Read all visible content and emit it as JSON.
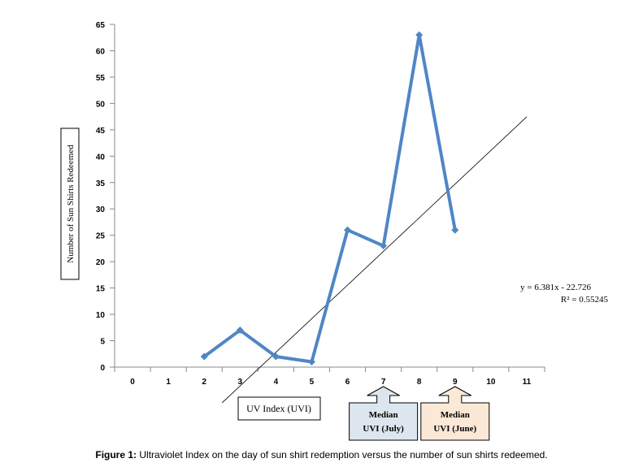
{
  "chart_data": {
    "type": "line",
    "xlabel": "UV Index (UVI)",
    "ylabel": "Number of Sun Shirts Redeemed",
    "x_ticks": [
      0,
      1,
      2,
      3,
      4,
      5,
      6,
      7,
      8,
      9,
      10,
      11
    ],
    "y_ticks": [
      0,
      5,
      10,
      15,
      20,
      25,
      30,
      35,
      40,
      45,
      50,
      55,
      60,
      65
    ],
    "xlim": [
      -0.5,
      11.5
    ],
    "ylim": [
      0,
      65
    ],
    "grid": false,
    "series": [
      {
        "x": [
          2,
          3,
          4,
          5,
          6,
          7,
          8,
          9
        ],
        "values": [
          2,
          7,
          2,
          1,
          26,
          23,
          63,
          26
        ],
        "color": "#4f86c6"
      }
    ],
    "trendline": {
      "type": "linear",
      "slope": 6.381,
      "intercept": -22.726,
      "x_range": [
        2.5,
        11
      ],
      "color": "#000000",
      "equation": "y = 6.381x - 22.726",
      "r_squared": "R² = 0.55245"
    },
    "annotations": [
      {
        "line1": "Median",
        "line2": "UVI (July)",
        "x": 7,
        "fill": "#dde6ef"
      },
      {
        "line1": "Median",
        "line2": "UVI (June)",
        "x": 9,
        "fill": "#fbe8d6"
      }
    ]
  },
  "caption": {
    "label": "Figure 1:",
    "text": " Ultraviolet Index on the day of sun shirt redemption versus the number of sun shirts redeemed."
  }
}
